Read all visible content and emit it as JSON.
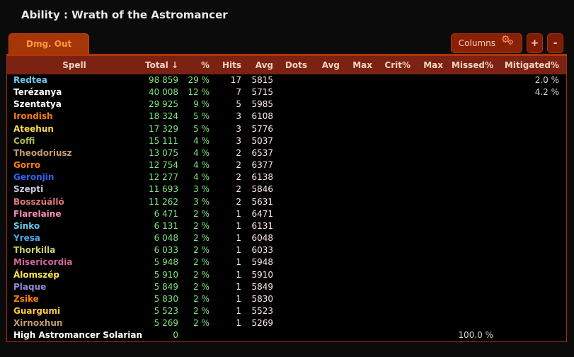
{
  "page": {
    "title": "Ability : Wrath of the Astromancer"
  },
  "tabs": [
    {
      "label": "Dmg. Out",
      "active": true
    }
  ],
  "toolbar": {
    "columns_label": "Columns",
    "gear_icon": "⚙",
    "add_label": "+",
    "remove_label": "-"
  },
  "colors": {
    "accent_tab": "#a53607",
    "accent_line": "#ae3509",
    "header_bg": "#7b2213",
    "header_text": "#f2d4c5",
    "value_green": "#7de87d",
    "value_pink": "#ffe9e9",
    "value_gray": "#dad3cf",
    "table_border": "#9e2f15"
  },
  "table": {
    "columns": [
      "Spell",
      "Total ↓",
      "%",
      "Hits",
      "Avg",
      "Dots",
      "Avg",
      "Max",
      "Crit%",
      "Max",
      "Missed%",
      "Mitigated%"
    ],
    "rows": [
      {
        "spell": "Redtea",
        "color": "#6fc8f0",
        "total": "98 859",
        "pct": "29 %",
        "hits": "17",
        "avg": "5815",
        "dots": "",
        "avg2": "",
        "max": "",
        "critpct": "",
        "max2": "",
        "missedpct": "",
        "mitigatedpct": "2.0 %"
      },
      {
        "spell": "Terézanya",
        "color": "#ffffff",
        "total": "40 008",
        "pct": "12 %",
        "hits": "7",
        "avg": "5715",
        "dots": "",
        "avg2": "",
        "max": "",
        "critpct": "",
        "max2": "",
        "missedpct": "",
        "mitigatedpct": "4.2 %"
      },
      {
        "spell": "Szentatya",
        "color": "#ffffff",
        "total": "29 925",
        "pct": "9 %",
        "hits": "5",
        "avg": "5985",
        "dots": "",
        "avg2": "",
        "max": "",
        "critpct": "",
        "max2": "",
        "missedpct": "",
        "mitigatedpct": ""
      },
      {
        "spell": "Irondish",
        "color": "#ff7d0a",
        "total": "18 324",
        "pct": "5 %",
        "hits": "3",
        "avg": "6108",
        "dots": "",
        "avg2": "",
        "max": "",
        "critpct": "",
        "max2": "",
        "missedpct": "",
        "mitigatedpct": ""
      },
      {
        "spell": "Ateehun",
        "color": "#ffdb4d",
        "total": "17 329",
        "pct": "5 %",
        "hits": "3",
        "avg": "5776",
        "dots": "",
        "avg2": "",
        "max": "",
        "critpct": "",
        "max2": "",
        "missedpct": "",
        "mitigatedpct": ""
      },
      {
        "spell": "Coffi",
        "color": "#b4ba55",
        "total": "15 111",
        "pct": "4 %",
        "hits": "3",
        "avg": "5037",
        "dots": "",
        "avg2": "",
        "max": "",
        "critpct": "",
        "max2": "",
        "missedpct": "",
        "mitigatedpct": ""
      },
      {
        "spell": "Theodoriusz",
        "color": "#c79c6e",
        "total": "13 075",
        "pct": "4 %",
        "hits": "2",
        "avg": "6537",
        "dots": "",
        "avg2": "",
        "max": "",
        "critpct": "",
        "max2": "",
        "missedpct": "",
        "mitigatedpct": ""
      },
      {
        "spell": "Gorro",
        "color": "#ff7d0a",
        "total": "12 754",
        "pct": "4 %",
        "hits": "2",
        "avg": "6377",
        "dots": "",
        "avg2": "",
        "max": "",
        "critpct": "",
        "max2": "",
        "missedpct": "",
        "mitigatedpct": ""
      },
      {
        "spell": "Geronjin",
        "color": "#2e66f2",
        "total": "12 277",
        "pct": "4 %",
        "hits": "2",
        "avg": "6138",
        "dots": "",
        "avg2": "",
        "max": "",
        "critpct": "",
        "max2": "",
        "missedpct": "",
        "mitigatedpct": ""
      },
      {
        "spell": "Szepti",
        "color": "#c9cade",
        "total": "11 693",
        "pct": "3 %",
        "hits": "2",
        "avg": "5846",
        "dots": "",
        "avg2": "",
        "max": "",
        "critpct": "",
        "max2": "",
        "missedpct": "",
        "mitigatedpct": ""
      },
      {
        "spell": "Bosszúálló",
        "color": "#e07878",
        "total": "11 262",
        "pct": "3 %",
        "hits": "2",
        "avg": "5631",
        "dots": "",
        "avg2": "",
        "max": "",
        "critpct": "",
        "max2": "",
        "missedpct": "",
        "mitigatedpct": ""
      },
      {
        "spell": "Flarelaine",
        "color": "#f58cba",
        "total": "6 471",
        "pct": "2 %",
        "hits": "1",
        "avg": "6471",
        "dots": "",
        "avg2": "",
        "max": "",
        "critpct": "",
        "max2": "",
        "missedpct": "",
        "mitigatedpct": ""
      },
      {
        "spell": "Sinko",
        "color": "#69ccf0",
        "total": "6 131",
        "pct": "2 %",
        "hits": "1",
        "avg": "6131",
        "dots": "",
        "avg2": "",
        "max": "",
        "critpct": "",
        "max2": "",
        "missedpct": "",
        "mitigatedpct": ""
      },
      {
        "spell": "Yresa",
        "color": "#4fa9ec",
        "total": "6 048",
        "pct": "2 %",
        "hits": "1",
        "avg": "6048",
        "dots": "",
        "avg2": "",
        "max": "",
        "critpct": "",
        "max2": "",
        "missedpct": "",
        "mitigatedpct": ""
      },
      {
        "spell": "Thorkilla",
        "color": "#c9d467",
        "total": "6 033",
        "pct": "2 %",
        "hits": "1",
        "avg": "6033",
        "dots": "",
        "avg2": "",
        "max": "",
        "critpct": "",
        "max2": "",
        "missedpct": "",
        "mitigatedpct": ""
      },
      {
        "spell": "Misericordia",
        "color": "#d0669e",
        "total": "5 948",
        "pct": "2 %",
        "hits": "1",
        "avg": "5948",
        "dots": "",
        "avg2": "",
        "max": "",
        "critpct": "",
        "max2": "",
        "missedpct": "",
        "mitigatedpct": ""
      },
      {
        "spell": "Álomszép",
        "color": "#ffe84d",
        "total": "5 910",
        "pct": "2 %",
        "hits": "1",
        "avg": "5910",
        "dots": "",
        "avg2": "",
        "max": "",
        "critpct": "",
        "max2": "",
        "missedpct": "",
        "mitigatedpct": ""
      },
      {
        "spell": "Plaque",
        "color": "#9489d6",
        "total": "5 849",
        "pct": "2 %",
        "hits": "1",
        "avg": "5849",
        "dots": "",
        "avg2": "",
        "max": "",
        "critpct": "",
        "max2": "",
        "missedpct": "",
        "mitigatedpct": ""
      },
      {
        "spell": "Zsike",
        "color": "#ff7d0a",
        "total": "5 830",
        "pct": "2 %",
        "hits": "1",
        "avg": "5830",
        "dots": "",
        "avg2": "",
        "max": "",
        "critpct": "",
        "max2": "",
        "missedpct": "",
        "mitigatedpct": ""
      },
      {
        "spell": "Guargumi",
        "color": "#ffc83c",
        "total": "5 523",
        "pct": "2 %",
        "hits": "1",
        "avg": "5523",
        "dots": "",
        "avg2": "",
        "max": "",
        "critpct": "",
        "max2": "",
        "missedpct": "",
        "mitigatedpct": ""
      },
      {
        "spell": "Xirnoxhun",
        "color": "#c79c6e",
        "total": "5 269",
        "pct": "2 %",
        "hits": "1",
        "avg": "5269",
        "dots": "",
        "avg2": "",
        "max": "",
        "critpct": "",
        "max2": "",
        "missedpct": "",
        "mitigatedpct": ""
      },
      {
        "spell": "High Astromancer Solarian",
        "color": "#ffffff",
        "total": "0",
        "pct": "",
        "hits": "",
        "avg": "",
        "dots": "",
        "avg2": "",
        "max": "",
        "critpct": "",
        "max2": "",
        "missedpct": "100.0 %",
        "mitigatedpct": ""
      }
    ]
  }
}
